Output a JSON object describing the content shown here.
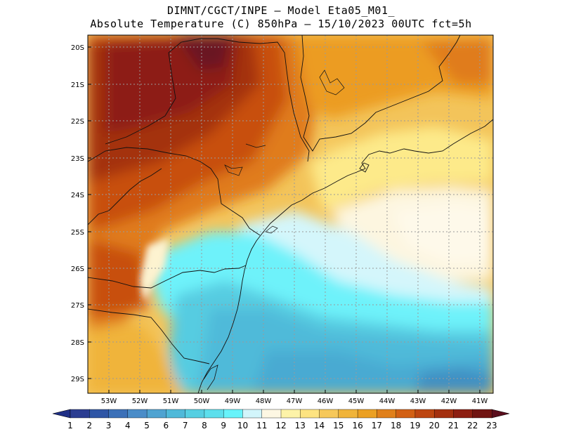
{
  "header": {
    "line1": "DIMNT/CGCT/INPE —  Model Eta05_M01_",
    "line2": "Absolute Temperature (C) 850hPa —  15/10/2023 00UTC fct=5h"
  },
  "map": {
    "lat_labels": [
      "20S",
      "21S",
      "22S",
      "23S",
      "24S",
      "25S",
      "26S",
      "27S",
      "28S",
      "29S"
    ],
    "lon_labels": [
      "53W",
      "52W",
      "51W",
      "50W",
      "49W",
      "48W",
      "47W",
      "46W",
      "45W",
      "44W",
      "43W",
      "42W",
      "41W"
    ]
  },
  "colorbar": {
    "labels": [
      "1",
      "2",
      "3",
      "4",
      "5",
      "6",
      "7",
      "8",
      "9",
      "10",
      "11",
      "12",
      "13",
      "14",
      "15",
      "16",
      "17",
      "18",
      "19",
      "20",
      "21",
      "22",
      "23"
    ],
    "colors": [
      "#2b3d91",
      "#2f56a6",
      "#3b70b8",
      "#4a8cc8",
      "#4fa3d1",
      "#4fb9d9",
      "#56cfe2",
      "#5ddfec",
      "#68f3fa",
      "#d2f5fb",
      "#fdf7e3",
      "#fdf3a8",
      "#fde381",
      "#f6c85a",
      "#f0b43a",
      "#eba023",
      "#e0801b",
      "#d26014",
      "#bd4611",
      "#a4300f",
      "#8d1f12",
      "#701412"
    ],
    "end_low": "#1f2f86",
    "end_high": "#5a0d1c"
  }
}
